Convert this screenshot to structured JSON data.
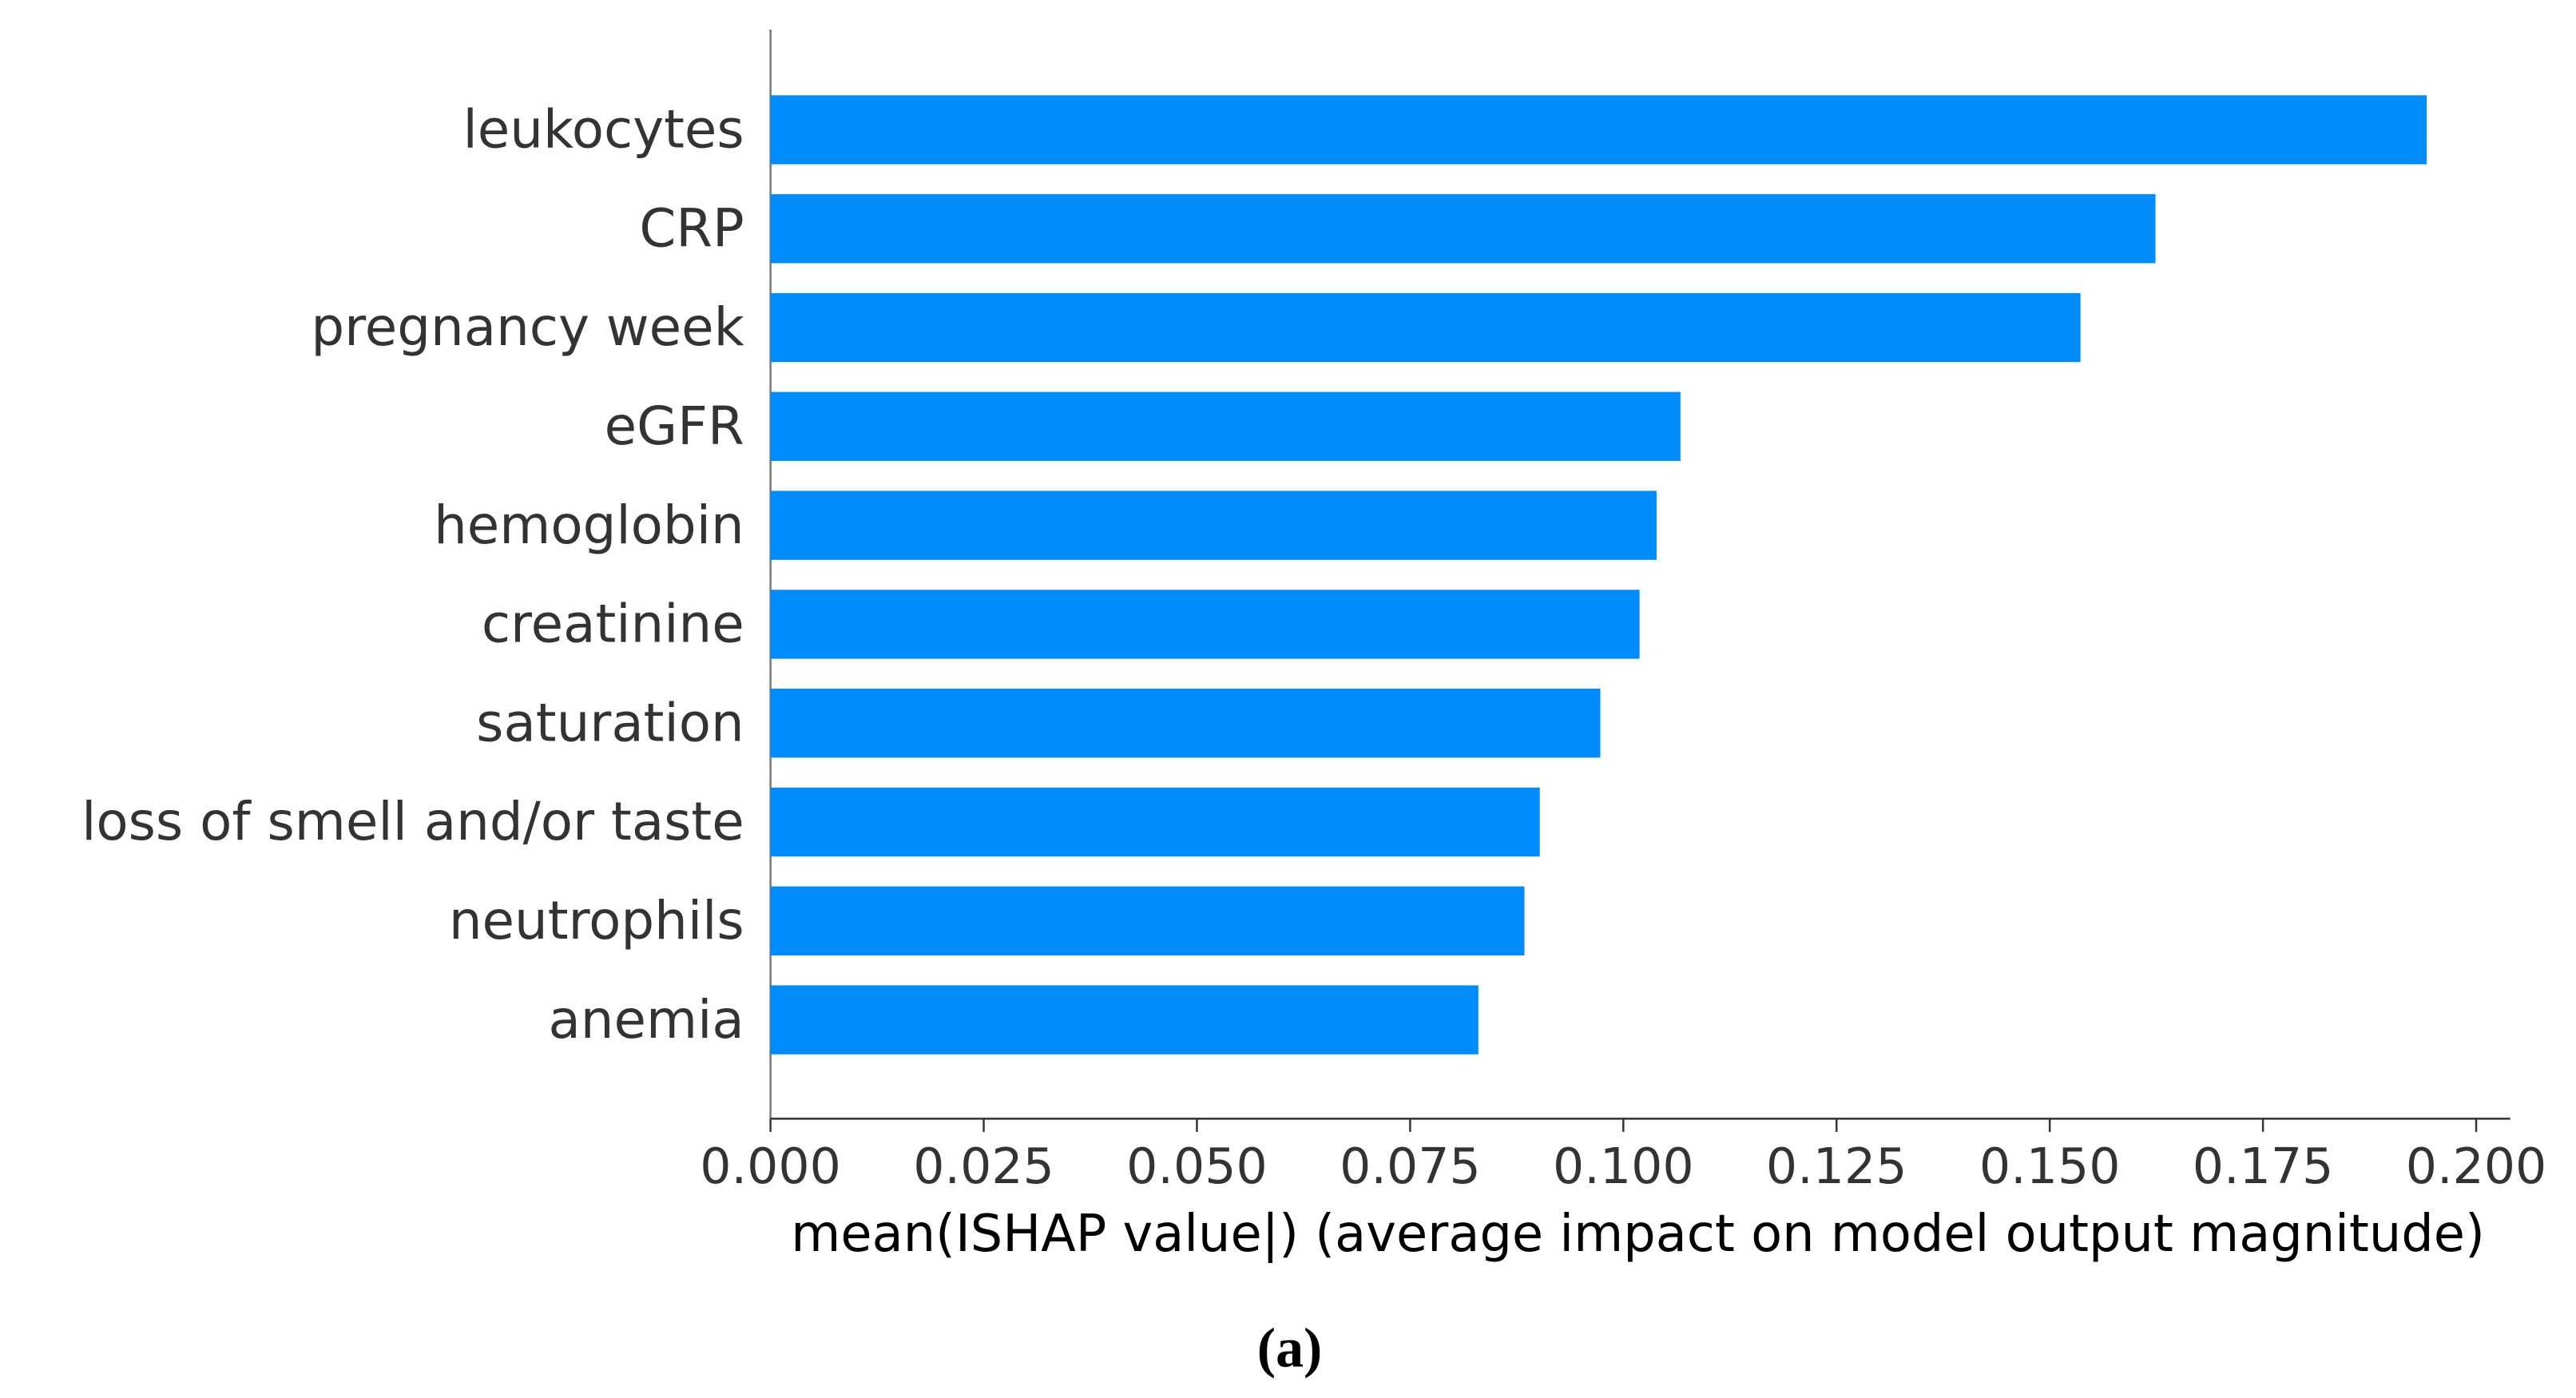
{
  "chart_data": {
    "type": "barh",
    "categories": [
      "leukocytes",
      "CRP",
      "pregnancy week",
      "eGFR",
      "hemoglobin",
      "creatinine",
      "saturation",
      "loss of smell and/or taste",
      "neutrophils",
      "anemia"
    ],
    "values": [
      0.1942,
      0.1624,
      0.1536,
      0.1067,
      0.1039,
      0.1019,
      0.0973,
      0.0902,
      0.0884,
      0.083
    ],
    "color": "#008bfb",
    "x_label": "mean(ISHAP value|) (average impact on model output magnitude)",
    "xlim": [
      0,
      0.204
    ],
    "xticks": [
      {
        "value": 0,
        "label": "0.000"
      },
      {
        "value": 0.025,
        "label": "0.025"
      },
      {
        "value": 0.05,
        "label": "0.050"
      },
      {
        "value": 0.075,
        "label": "0.075"
      },
      {
        "value": 0.1,
        "label": "0.100"
      },
      {
        "value": 0.125,
        "label": "0.125"
      },
      {
        "value": 0.15,
        "label": "0.150"
      },
      {
        "value": 0.175,
        "label": "0.175"
      },
      {
        "value": 0.2,
        "label": "0.200"
      }
    ],
    "grid": false
  },
  "caption": "(a)"
}
